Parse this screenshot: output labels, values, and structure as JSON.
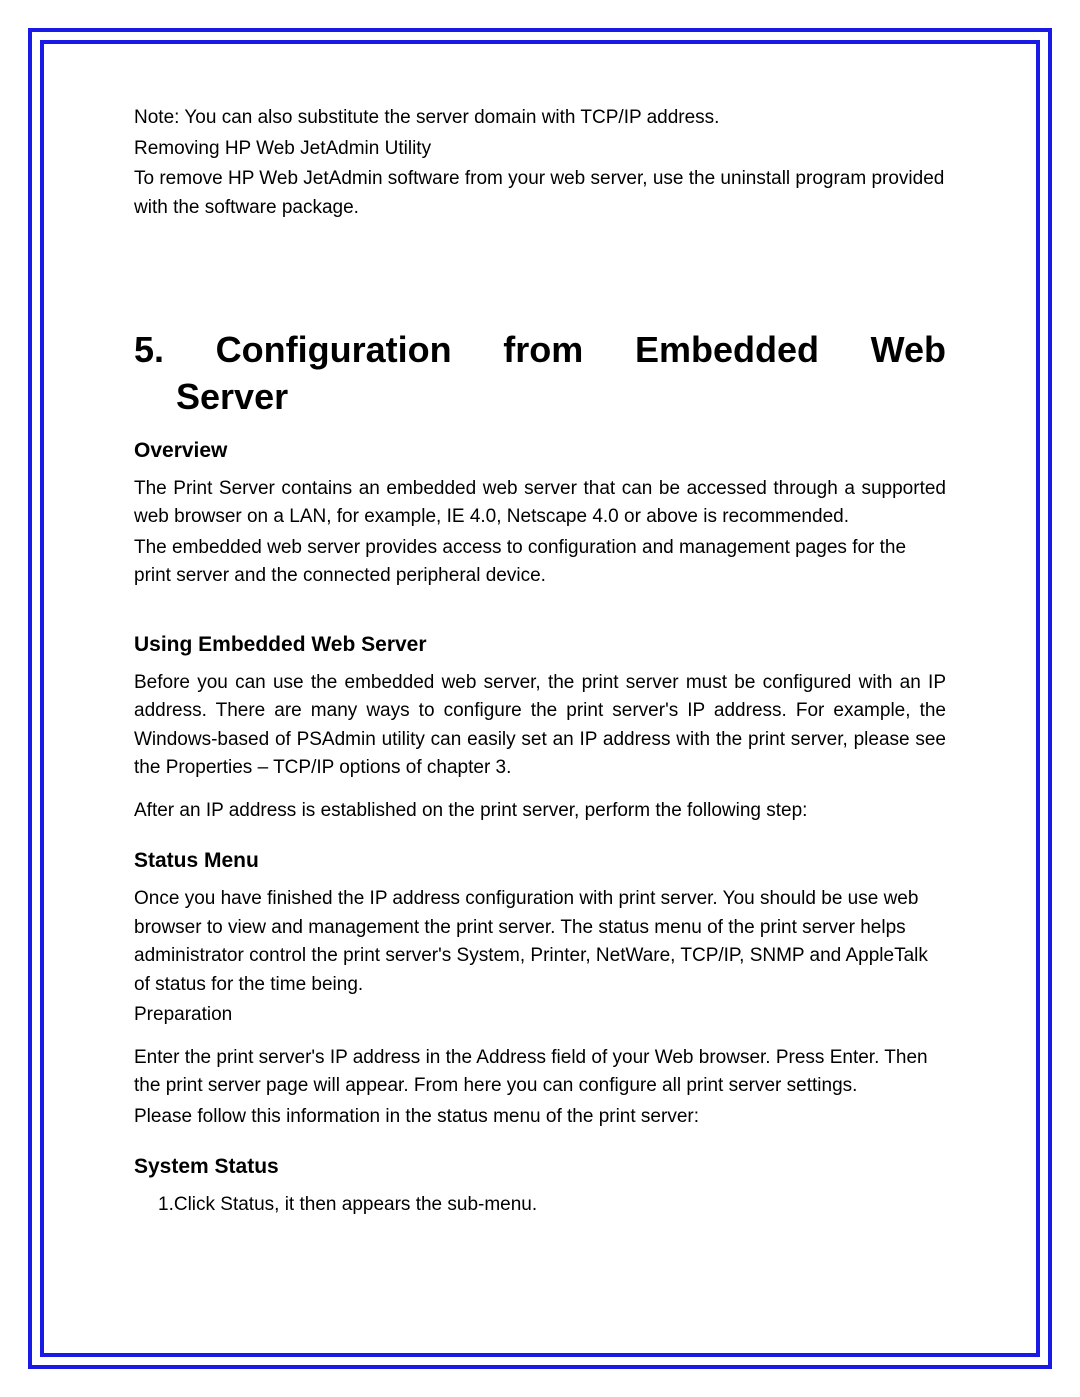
{
  "colors": {
    "border": "#1a1ae6",
    "text": "#000000",
    "background": "#ffffff"
  },
  "typography": {
    "body_fontsize": 19,
    "h1_fontsize": 36,
    "h2_fontsize": 21,
    "font_family": "Arial"
  },
  "intro": {
    "note": "Note: You can also substitute the server domain with TCP/IP address.",
    "removing_title": "Removing HP Web JetAdmin Utility",
    "removing_body": "To remove HP Web JetAdmin software from your web server, use the uninstall program provided with the software package."
  },
  "chapter": {
    "title_line1": "5. Configuration from Embedded Web",
    "title_line2": "Server"
  },
  "sections": {
    "overview": {
      "heading": "Overview",
      "p1": "The Print Server contains an embedded web server that can be accessed through a supported web browser on a LAN, for example, IE 4.0, Netscape 4.0 or above is recommended.",
      "p2": "The embedded web server provides access to configuration and management pages for the print server and the connected peripheral device."
    },
    "using": {
      "heading": "Using Embedded Web Server",
      "p1": "Before you can use the embedded web server, the print server must be configured with an IP address. There are many ways to configure the print server's IP address. For example, the Windows-based of PSAdmin utility can easily set an IP address with the print server, please see the Properties – TCP/IP options of chapter 3.",
      "p2": "After an IP address is established on the print server, perform the following step:"
    },
    "status_menu": {
      "heading": "Status Menu",
      "p1": "Once you have finished the IP address configuration with print server. You should be use web browser to view and management the print server. The status menu of the print server helps administrator control the print server's System, Printer, NetWare, TCP/IP, SNMP and AppleTalk of status for the time being.",
      "preparation_label": "Preparation",
      "p2": "Enter the print server's IP address in the Address field of your Web browser. Press Enter. Then the print server page will appear. From here you can configure all print server settings.",
      "p3": "Please follow this information in the status menu of the print server:"
    },
    "system_status": {
      "heading": "System Status",
      "item1": "1.Click Status, it then appears the sub-menu."
    }
  }
}
